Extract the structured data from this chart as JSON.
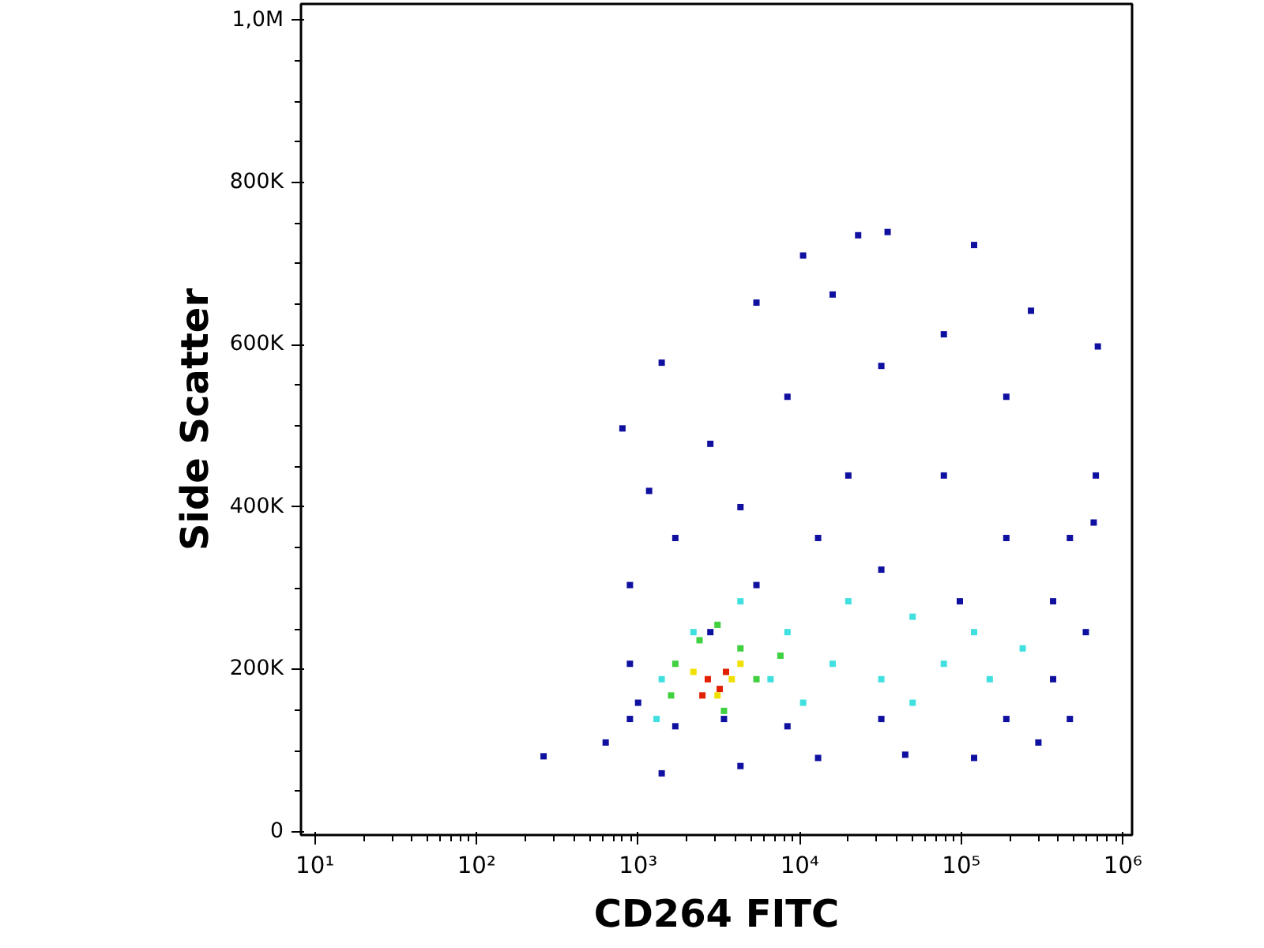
{
  "chart_data": {
    "type": "scatter",
    "xlabel": "CD264 FITC",
    "ylabel": "Side Scatter",
    "log": "x",
    "grid": false,
    "marker": "square",
    "xlim": [
      8.2,
      1140000
    ],
    "ylim": [
      -4000,
      1020000
    ],
    "xticks": [
      {
        "value": 10,
        "label": "10¹"
      },
      {
        "value": 100,
        "label": "10²"
      },
      {
        "value": 1000,
        "label": "10³"
      },
      {
        "value": 10000,
        "label": "10⁴"
      },
      {
        "value": 100000,
        "label": "10⁵"
      },
      {
        "value": 1000000,
        "label": "10⁶"
      }
    ],
    "yticks": [
      0,
      {
        "value": 200000,
        "label": "200K"
      },
      {
        "value": 400000,
        "label": "400K"
      },
      {
        "value": 600000,
        "label": "600K"
      },
      {
        "value": 800000,
        "label": "800K"
      },
      {
        "value": 1000000,
        "label": "1,0M"
      }
    ],
    "series": [
      {
        "color": "#1010a0",
        "x": [
          260,
          630,
          890,
          1400,
          4300,
          13000,
          45000,
          120000,
          300000,
          470000,
          590000,
          660000,
          680000,
          700000,
          270000,
          120000,
          35000,
          23000,
          10500,
          5400,
          16000,
          1400,
          800,
          1170,
          2800,
          8400,
          32000,
          78000,
          190000,
          470000,
          78000,
          20000,
          4300,
          1700,
          890,
          890,
          1000,
          1700,
          3400,
          8400,
          32000,
          190000,
          370000,
          370000,
          190000,
          98000,
          32000,
          13000,
          5400,
          2800
        ],
        "values": [
          93000,
          110000,
          139000,
          72000,
          81000,
          91000,
          95000,
          91000,
          110000,
          139000,
          246000,
          381000,
          439000,
          598000,
          642000,
          723000,
          739000,
          735000,
          710000,
          652000,
          662000,
          578000,
          497000,
          420000,
          478000,
          536000,
          574000,
          613000,
          536000,
          362000,
          439000,
          439000,
          400000,
          362000,
          304000,
          207000,
          159000,
          130000,
          139000,
          130000,
          139000,
          139000,
          188000,
          284000,
          362000,
          284000,
          323000,
          362000,
          304000,
          246000
        ]
      },
      {
        "color": "#40e0e0",
        "x": [
          1400,
          2200,
          4300,
          8400,
          16000,
          32000,
          78000,
          150000,
          240000,
          120000,
          50000,
          20000,
          6600,
          10500,
          50000,
          1300
        ],
        "values": [
          188000,
          246000,
          284000,
          246000,
          207000,
          188000,
          207000,
          188000,
          226000,
          246000,
          265000,
          284000,
          188000,
          159000,
          159000,
          139000
        ]
      },
      {
        "color": "#40d040",
        "x": [
          1700,
          2400,
          4300,
          5400,
          3400,
          1600,
          7600,
          3100
        ],
        "values": [
          207000,
          236000,
          226000,
          188000,
          149000,
          168000,
          217000,
          255000
        ]
      },
      {
        "color": "#f0e000",
        "x": [
          2200,
          3800,
          3100,
          4300
        ],
        "values": [
          197000,
          188000,
          168000,
          207000
        ]
      },
      {
        "color": "#e02000",
        "x": [
          2700,
          3200,
          2500,
          3500
        ],
        "values": [
          188000,
          176000,
          168000,
          197000
        ]
      }
    ]
  }
}
